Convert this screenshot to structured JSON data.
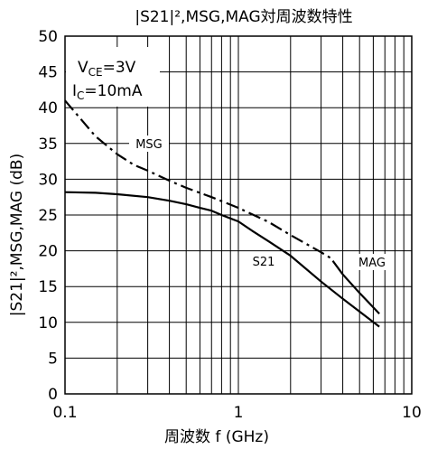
{
  "chart_data": {
    "type": "line",
    "title": "|S21|²,MSG,MAG対周波数特性",
    "xlabel": "周波数 f (GHz)",
    "ylabel": "|S21|²,MSG,MAG (dB)",
    "x_scale": "log",
    "xlim": [
      0.1,
      10
    ],
    "ylim": [
      0,
      50
    ],
    "x_ticks": [
      "0.1",
      "1",
      "10"
    ],
    "y_ticks": [
      "0",
      "5",
      "10",
      "15",
      "20",
      "25",
      "30",
      "35",
      "40",
      "45",
      "50"
    ],
    "grid": true,
    "conditions": {
      "vce": {
        "sym": "V",
        "sub": "CE",
        "val": "=3V"
      },
      "ic": {
        "sym": "I",
        "sub": "C",
        "val": "=10mA"
      }
    },
    "series": [
      {
        "name": "S21",
        "style": "solid",
        "x": [
          0.1,
          0.15,
          0.2,
          0.3,
          0.4,
          0.5,
          0.6,
          0.7,
          0.8,
          1.0,
          1.2,
          1.5,
          2.0,
          3.0,
          4.0,
          5.0,
          6.5
        ],
        "y": [
          28.2,
          28.1,
          27.9,
          27.5,
          27.0,
          26.5,
          26.0,
          25.6,
          25.0,
          24.1,
          22.8,
          21.3,
          19.3,
          15.7,
          13.3,
          11.5,
          9.4
        ]
      },
      {
        "name": "MSG",
        "style": "dashdot",
        "x": [
          0.1,
          0.15,
          0.2,
          0.25,
          0.3,
          0.4,
          0.5,
          0.7,
          1.0,
          1.5,
          2.0,
          3.0,
          3.5
        ],
        "y": [
          41.0,
          36.0,
          33.5,
          32.0,
          31.2,
          29.8,
          28.8,
          27.5,
          26.0,
          24.0,
          22.2,
          19.8,
          18.8
        ]
      },
      {
        "name": "MAG",
        "style": "solid",
        "x": [
          3.5,
          4.0,
          5.0,
          6.5
        ],
        "y": [
          18.6,
          16.7,
          14.1,
          11.2
        ]
      }
    ]
  }
}
